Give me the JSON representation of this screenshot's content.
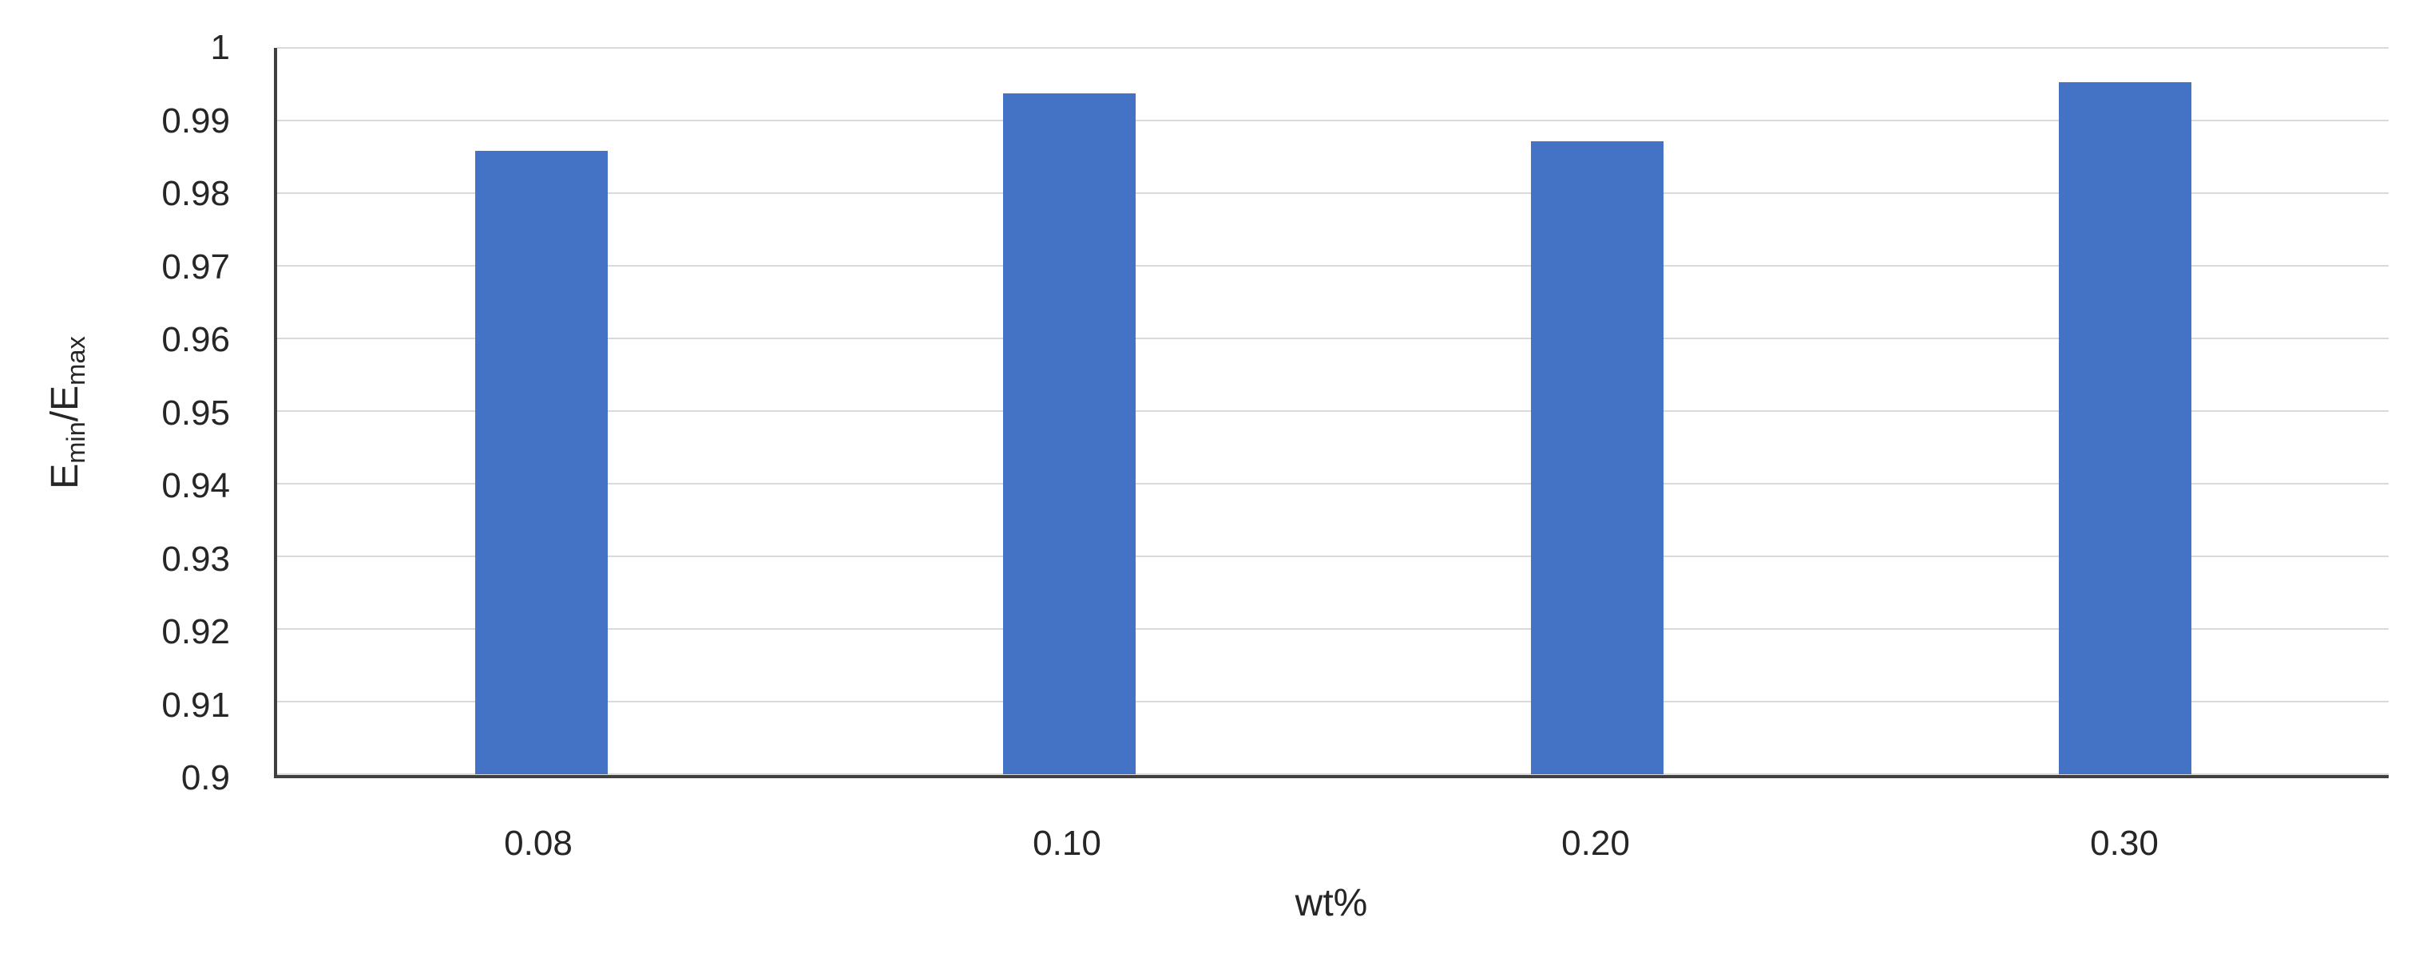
{
  "chart_data": {
    "type": "bar",
    "categories": [
      "0.08",
      "0.10",
      "0.20",
      "0.30"
    ],
    "values": [
      0.9858,
      0.9937,
      0.9871,
      0.9953
    ],
    "title": "",
    "xlabel": "wt%",
    "ylabel": "Emin/Emax",
    "ylabel_rich": {
      "base1": "E",
      "sub1": "min",
      "divider": "/",
      "base2": "E",
      "sub2": "max"
    },
    "ylim": [
      0.9,
      1.0
    ],
    "ytick_step": 0.01,
    "ytick_labels": [
      "1",
      "0.99",
      "0.98",
      "0.97",
      "0.96",
      "0.95",
      "0.94",
      "0.93",
      "0.92",
      "0.91",
      "0.9"
    ],
    "grid": true,
    "legend": "none",
    "colors": {
      "bar": "#4472C4",
      "axis": "#404040",
      "gridline": "#D9D9D9",
      "text": "#262626",
      "background": "#FFFFFF"
    }
  }
}
